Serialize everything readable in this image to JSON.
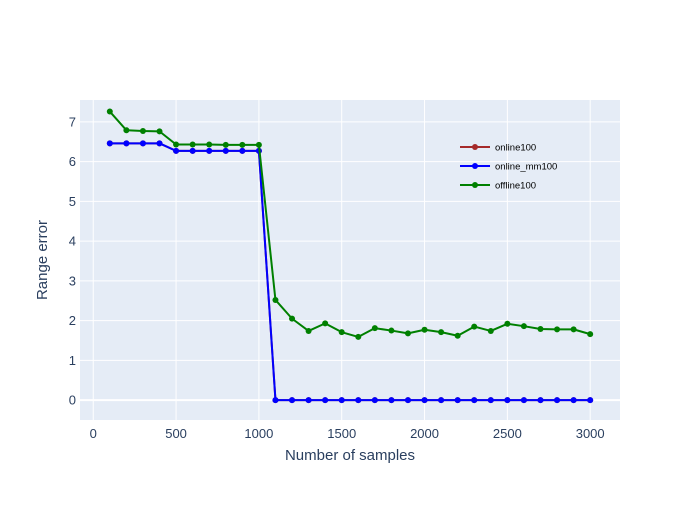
{
  "chart_data": {
    "type": "line",
    "title": "",
    "xlabel": "Number of samples",
    "ylabel": "Range error",
    "xlim": [
      -80,
      3180
    ],
    "ylim": [
      -0.5,
      7.55
    ],
    "xticks": [
      0,
      500,
      1000,
      1500,
      2000,
      2500,
      3000
    ],
    "xtick_labels": [
      "0",
      "500",
      "1000",
      "1500",
      "2000",
      "2500",
      "3000"
    ],
    "yticks": [
      0,
      1,
      2,
      3,
      4,
      5,
      6,
      7
    ],
    "ytick_labels": [
      "0",
      "1",
      "2",
      "3",
      "4",
      "5",
      "6",
      "7"
    ],
    "grid": true,
    "legend_position": "top-right",
    "plot_bgcolor": "#e5ecf6",
    "grid_color": "#ffffff",
    "x": [
      100,
      200,
      300,
      400,
      500,
      600,
      700,
      800,
      900,
      1000,
      1100,
      1200,
      1300,
      1400,
      1500,
      1600,
      1700,
      1800,
      1900,
      2000,
      2100,
      2200,
      2300,
      2400,
      2500,
      2600,
      2700,
      2800,
      2900,
      3000
    ],
    "series": [
      {
        "name": "online100",
        "color": "#a52a2a",
        "values": [
          6.46,
          6.46,
          6.46,
          6.46,
          6.27,
          6.27,
          6.27,
          6.27,
          6.27,
          6.27,
          0,
          0,
          0,
          0,
          0,
          0,
          0,
          0,
          0,
          0,
          0,
          0,
          0,
          0,
          0,
          0,
          0,
          0,
          0,
          0
        ]
      },
      {
        "name": "online_mm100",
        "color": "#0000ff",
        "values": [
          6.46,
          6.46,
          6.46,
          6.46,
          6.27,
          6.27,
          6.27,
          6.27,
          6.27,
          6.27,
          0,
          0,
          0,
          0,
          0,
          0,
          0,
          0,
          0,
          0,
          0,
          0,
          0,
          0,
          0,
          0,
          0,
          0,
          0,
          0
        ]
      },
      {
        "name": "offline100",
        "color": "#008000",
        "values": [
          7.26,
          6.79,
          6.77,
          6.76,
          6.43,
          6.43,
          6.43,
          6.42,
          6.42,
          6.42,
          2.52,
          2.05,
          1.74,
          1.93,
          1.71,
          1.59,
          1.81,
          1.75,
          1.68,
          1.77,
          1.71,
          1.62,
          1.85,
          1.74,
          1.92,
          1.86,
          1.79,
          1.78,
          1.78,
          1.66
        ]
      }
    ]
  }
}
